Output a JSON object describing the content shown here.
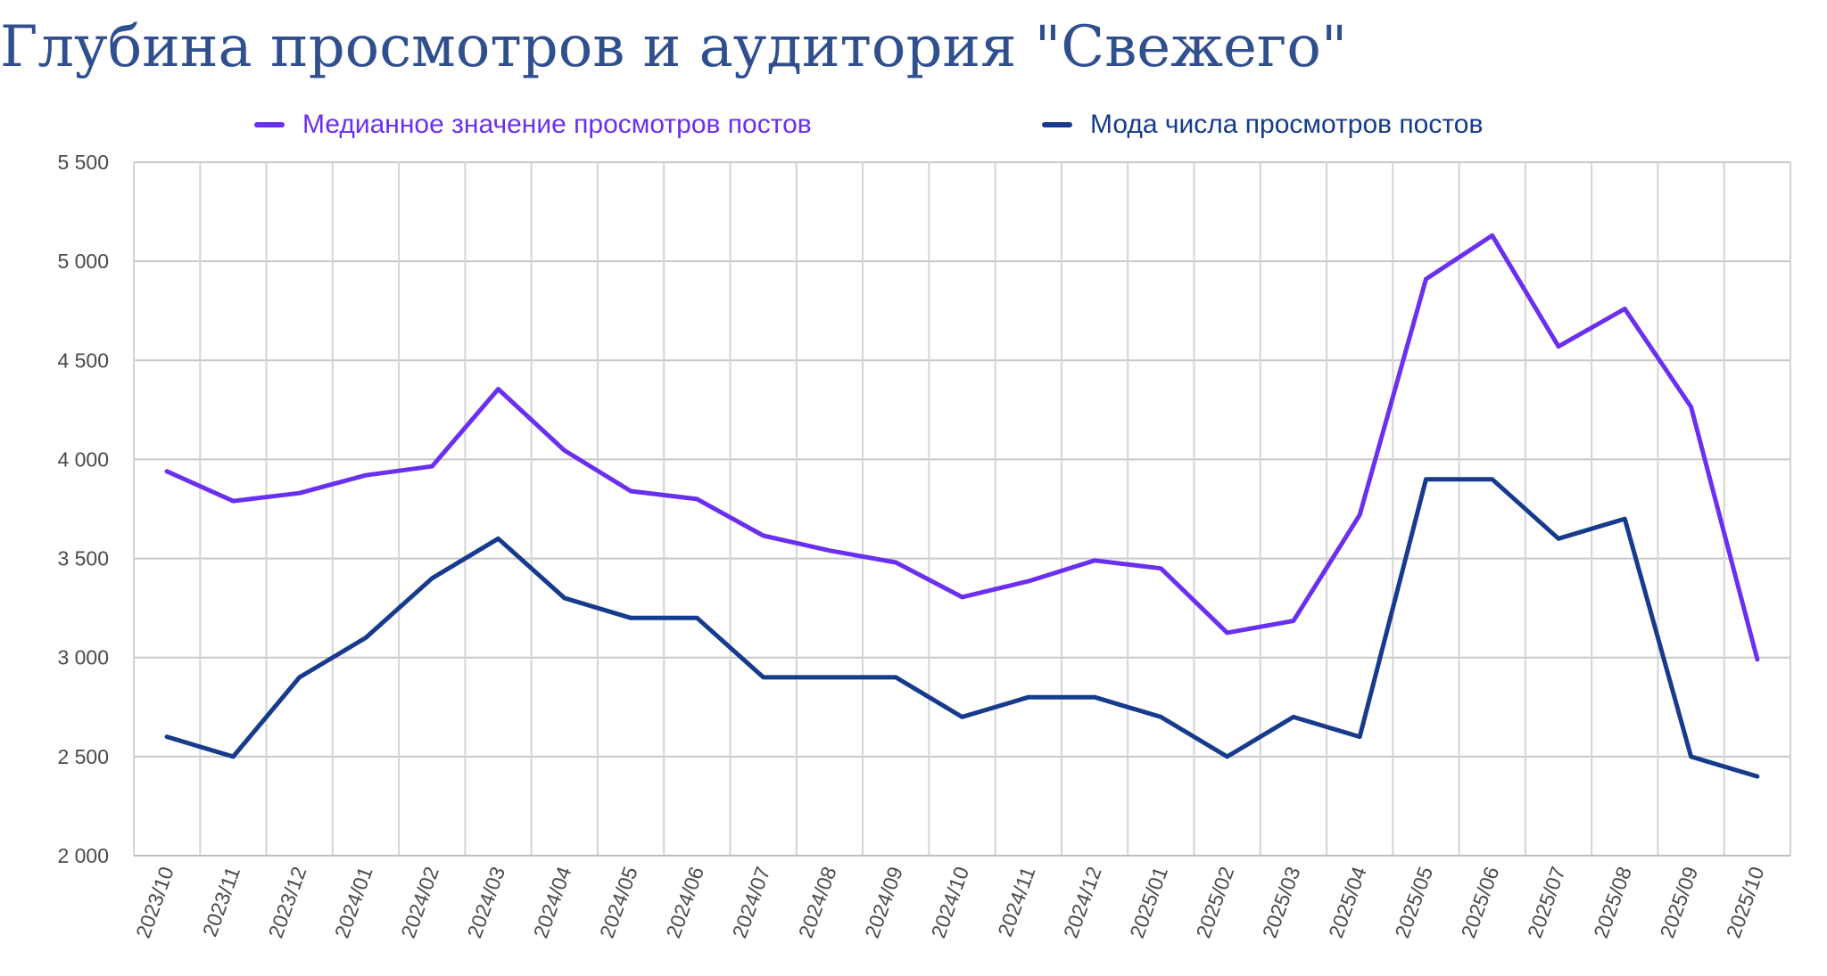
{
  "chart_data": {
    "type": "line",
    "title": "Глубина просмотров и аудитория \"Свежего\"",
    "xlabel": "",
    "ylabel": "",
    "categories": [
      "2023/10",
      "2023/11",
      "2023/12",
      "2024/01",
      "2024/02",
      "2024/03",
      "2024/04",
      "2024/05",
      "2024/06",
      "2024/07",
      "2024/08",
      "2024/09",
      "2024/10",
      "2024/11",
      "2024/12",
      "2025/01",
      "2025/02",
      "2025/03",
      "2025/04",
      "2025/05",
      "2025/06",
      "2025/07",
      "2025/08",
      "2025/09",
      "2025/10"
    ],
    "series": [
      {
        "name": "Медианное значение просмотров постов",
        "color": "#6a2ff0",
        "values": [
          3940,
          3790,
          3830,
          3920,
          3965,
          4355,
          4045,
          3840,
          3800,
          3615,
          3540,
          3480,
          3305,
          3385,
          3490,
          3450,
          3125,
          3185,
          3720,
          4910,
          5130,
          4570,
          4760,
          4265,
          2990
        ]
      },
      {
        "name": "Мода числа просмотров постов",
        "color": "#163a8c",
        "values": [
          2600,
          2500,
          2900,
          3100,
          3400,
          3600,
          3300,
          3200,
          3200,
          2900,
          2900,
          2900,
          2700,
          2800,
          2800,
          2700,
          2500,
          2700,
          2600,
          3900,
          3900,
          3600,
          3700,
          2500,
          2400
        ]
      }
    ],
    "ylim": [
      2000,
      5500
    ],
    "yticks": [
      2000,
      2500,
      3000,
      3500,
      4000,
      4500,
      5000,
      5500
    ],
    "ytick_labels": [
      "2 000",
      "2 500",
      "3 000",
      "3 500",
      "4 000",
      "4 500",
      "5 000",
      "5 500"
    ],
    "grid": true,
    "legend_position": "top"
  }
}
